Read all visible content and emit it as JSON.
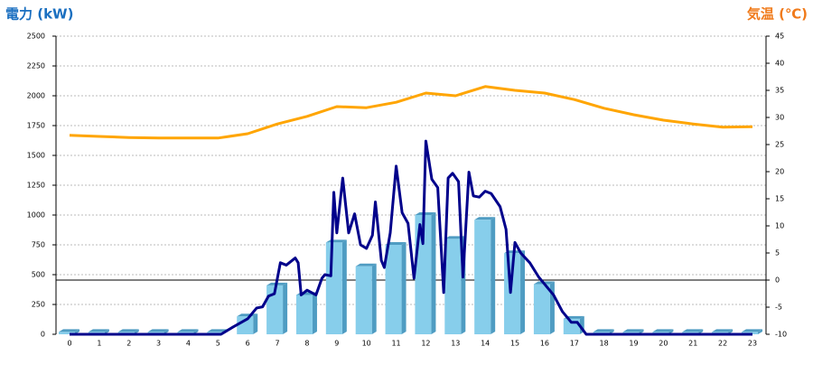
{
  "chart_data": {
    "type": "bar_line",
    "title_left": "電力 (kW)",
    "title_right": "気温 (℃)",
    "title_left_color": "#1a6fc0",
    "title_right_color": "#f07a1a",
    "categories": [
      "0",
      "1",
      "2",
      "3",
      "4",
      "5",
      "6",
      "7",
      "8",
      "9",
      "10",
      "11",
      "12",
      "13",
      "14",
      "15",
      "16",
      "17",
      "18",
      "19",
      "20",
      "21",
      "22",
      "23"
    ],
    "ylim": [
      0,
      2500
    ],
    "yticks": [
      0,
      250,
      500,
      750,
      1000,
      1250,
      1500,
      1750,
      2000,
      2250,
      2500
    ],
    "y2lim": [
      -10,
      45
    ],
    "y2ticks": [
      -10,
      -5,
      0,
      5,
      10,
      15,
      20,
      25,
      30,
      35,
      40,
      45
    ],
    "grid": true,
    "y2_zero_line": true,
    "series": [
      {
        "type": "bar",
        "color": "#87ceeb",
        "side_color": "#4f9cc2",
        "values": [
          20,
          20,
          20,
          20,
          20,
          20,
          150,
          410,
          330,
          770,
          570,
          750,
          1000,
          800,
          960,
          680,
          420,
          130,
          20,
          20,
          20,
          20,
          20,
          20
        ]
      },
      {
        "type": "line",
        "axis": "y2",
        "color": "#ffa500",
        "values": [
          26.7,
          26.5,
          26.3,
          26.2,
          26.2,
          26.2,
          27,
          28.8,
          30.2,
          32,
          31.8,
          32.8,
          34.5,
          34,
          35.7,
          35,
          34.5,
          33.3,
          31.7,
          30.5,
          29.5,
          28.8,
          28.2,
          28.3
        ]
      },
      {
        "type": "line",
        "color": "#00008b",
        "x": [
          0,
          5.1,
          5.5,
          6.0,
          6.3,
          6.5,
          6.7,
          6.9,
          7.1,
          7.3,
          7.6,
          7.7,
          7.8,
          8.0,
          8.3,
          8.5,
          8.6,
          8.8,
          8.9,
          9.0,
          9.2,
          9.4,
          9.6,
          9.8,
          10.0,
          10.2,
          10.3,
          10.5,
          10.6,
          10.8,
          11.0,
          11.2,
          11.4,
          11.6,
          11.8,
          11.9,
          12.0,
          12.2,
          12.4,
          12.6,
          12.75,
          12.9,
          13.1,
          13.25,
          13.45,
          13.6,
          13.8,
          14.0,
          14.2,
          14.5,
          14.7,
          14.85,
          15.0,
          15.2,
          15.5,
          15.8,
          16.0,
          16.3,
          16.6,
          16.9,
          17.1,
          17.4,
          23.0
        ],
        "values": [
          0,
          0,
          60,
          130,
          220,
          230,
          320,
          340,
          600,
          580,
          640,
          600,
          330,
          370,
          330,
          470,
          500,
          490,
          1190,
          850,
          1310,
          850,
          1010,
          750,
          720,
          830,
          1110,
          620,
          560,
          850,
          1410,
          1020,
          930,
          470,
          920,
          760,
          1620,
          1300,
          1230,
          350,
          1310,
          1350,
          1280,
          480,
          1360,
          1160,
          1150,
          1200,
          1180,
          1070,
          880,
          350,
          770,
          680,
          600,
          480,
          420,
          330,
          190,
          100,
          100,
          0,
          0
        ]
      }
    ]
  }
}
